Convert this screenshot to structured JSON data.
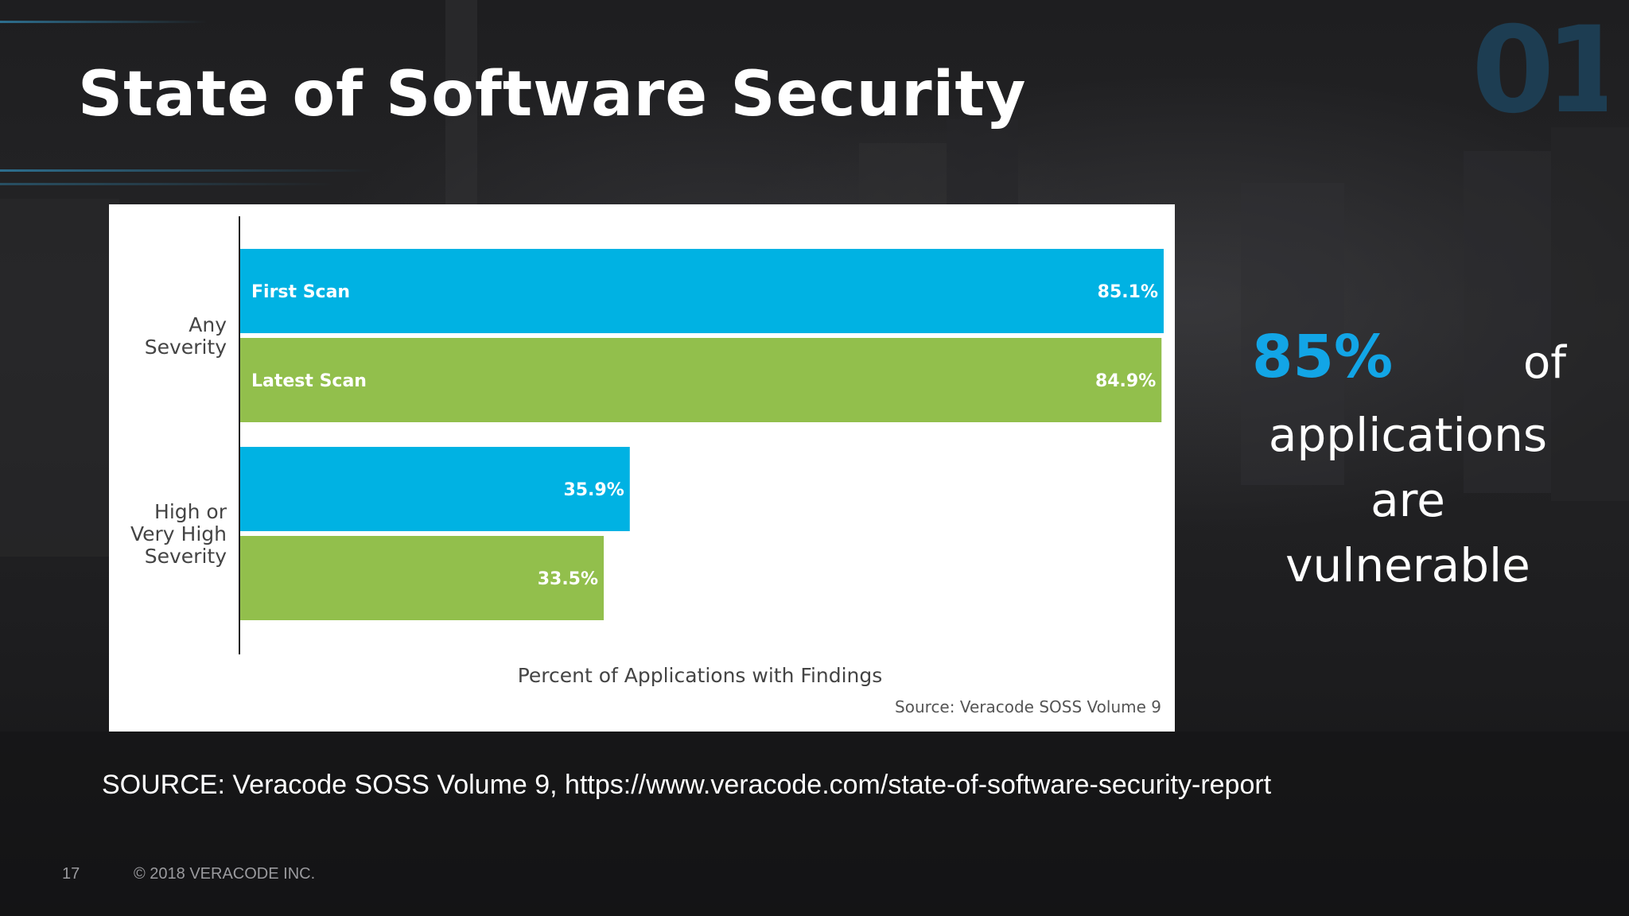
{
  "slide": {
    "title": "State of Software Security",
    "source_line": "SOURCE: Veracode SOSS Volume 9, https://www.veracode.com/state-of-software-security-report",
    "page_number": "17",
    "copyright": "© 2018 VERACODE INC.",
    "logo_text": "01"
  },
  "stat": {
    "percent": "85%",
    "of_word": "of",
    "rest_line1": "applications are",
    "rest_line2": "vulnerable",
    "accent_color": "#12a5e6"
  },
  "chart_data": {
    "type": "bar",
    "orientation": "horizontal",
    "categories": [
      "Any Severity",
      "High or Very High Severity"
    ],
    "category_label_lines": [
      [
        "Any",
        "Severity"
      ],
      [
        "High or",
        "Very High",
        "Severity"
      ]
    ],
    "series": [
      {
        "name": "First Scan",
        "color": "#00b2e3",
        "values": [
          85.1,
          35.9
        ],
        "data_labels": [
          "85.1%",
          "35.9%"
        ]
      },
      {
        "name": "Latest Scan",
        "color": "#92bf4c",
        "values": [
          84.9,
          33.5
        ],
        "data_labels": [
          "84.9%",
          "33.5%"
        ]
      }
    ],
    "xlabel": "Percent of Applications with Findings",
    "note": "Source: Veracode SOSS Volume 9",
    "xlim": [
      0,
      85.1
    ],
    "legend": "inside-bars",
    "grid": false
  }
}
